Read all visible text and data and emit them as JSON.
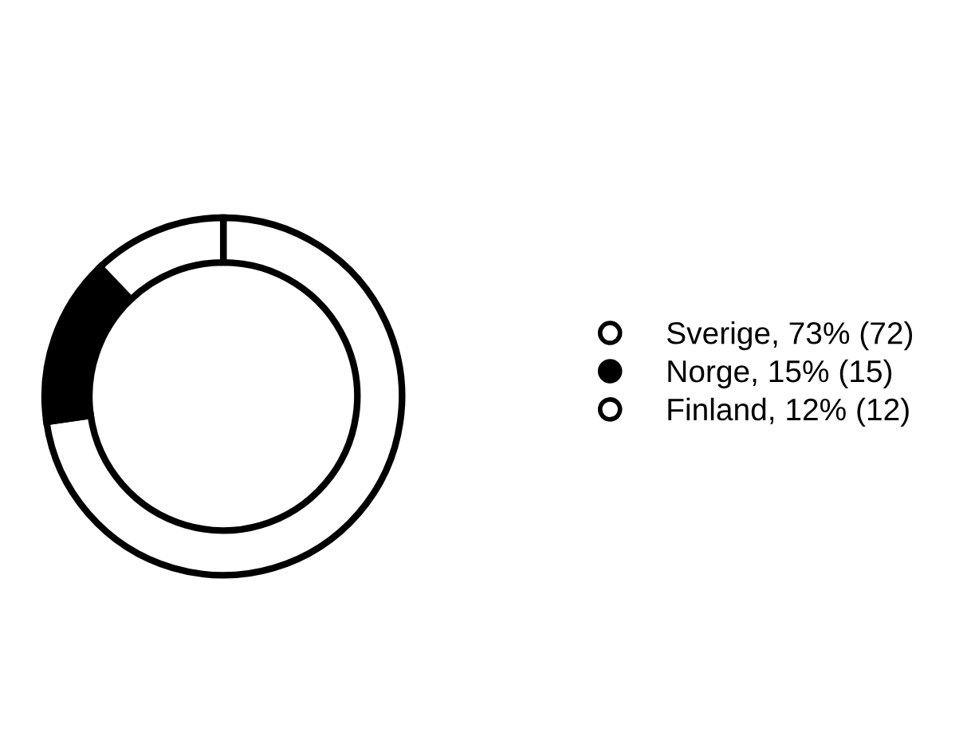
{
  "chart_data": {
    "type": "donut",
    "categories": [
      "Sverige, 73% (72)",
      "Norge, 15% (15)",
      "Finland, 12% (12)"
    ],
    "values": [
      72,
      15,
      12
    ],
    "colors": [
      "#ffffff",
      "#000000",
      "#ffffff"
    ],
    "legend": "right"
  }
}
